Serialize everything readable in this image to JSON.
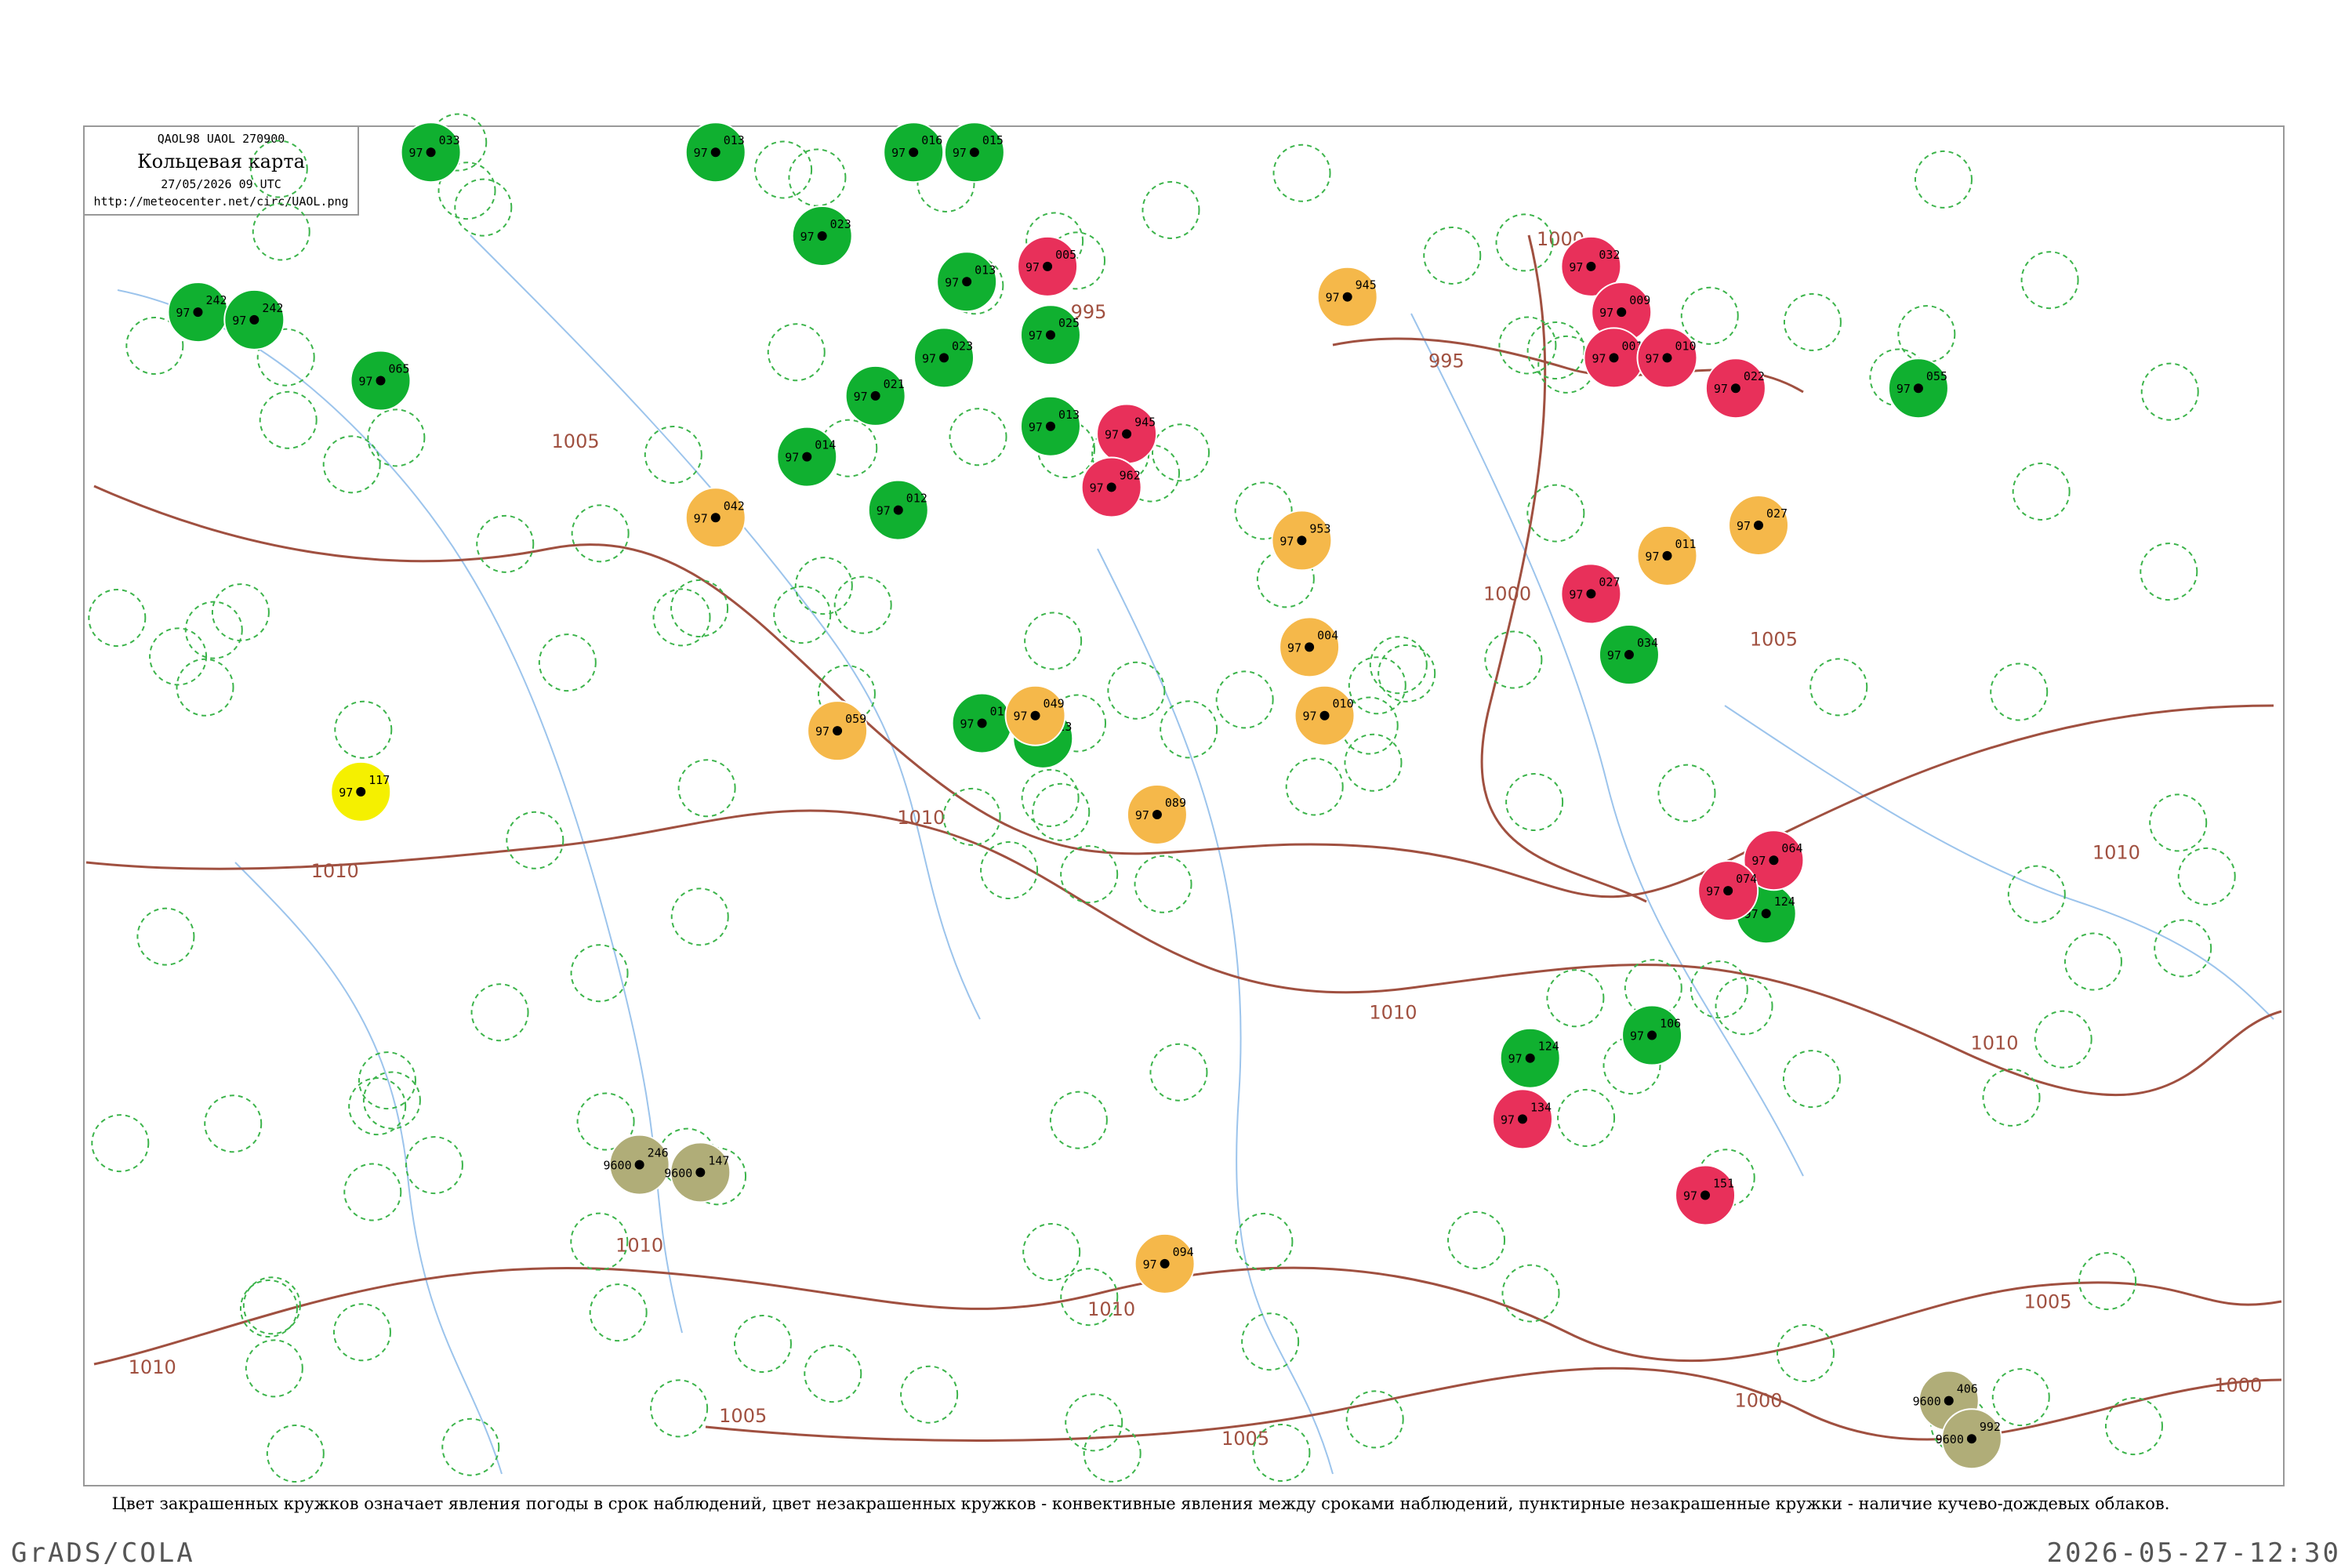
{
  "header": {
    "code": "QAOL98  UAOL  270900",
    "title": "Кольцевая карта",
    "time": "27/05/2026 09 UTC",
    "url": "http://meteocenter.net/circ/UAOL.png"
  },
  "isobar_labels": [
    "1000",
    "995",
    "995",
    "1005",
    "1005",
    "1005",
    "1010",
    "1010",
    "1010",
    "1010",
    "1010",
    "1000",
    "1000",
    "1000",
    "1005",
    "1005",
    "1010",
    "1010",
    "1010"
  ],
  "stations": [
    {
      "pressure": "242",
      "temp": "97",
      "fill": "#10b030"
    },
    {
      "pressure": "242",
      "temp": "97",
      "fill": "#10b030"
    },
    {
      "pressure": "065",
      "temp": "97",
      "fill": "#10b030"
    },
    {
      "pressure": "033",
      "temp": "97",
      "fill": "#10b030"
    },
    {
      "pressure": "013",
      "temp": "97",
      "fill": "#10b030"
    },
    {
      "pressure": "023",
      "temp": "97",
      "fill": "#10b030"
    },
    {
      "pressure": "016",
      "temp": "97",
      "fill": "#10b030"
    },
    {
      "pressure": "015",
      "temp": "97",
      "fill": "#10b030"
    },
    {
      "pressure": "013",
      "temp": "97",
      "fill": "#10b030"
    },
    {
      "pressure": "023",
      "temp": "97",
      "fill": "#10b030"
    },
    {
      "pressure": "025",
      "temp": "97",
      "fill": "#10b030"
    },
    {
      "pressure": "013",
      "temp": "97",
      "fill": "#10b030"
    },
    {
      "pressure": "014",
      "temp": "97",
      "fill": "#10b030"
    },
    {
      "pressure": "021",
      "temp": "97",
      "fill": "#10b030"
    },
    {
      "pressure": "012",
      "temp": "97",
      "fill": "#10b030"
    },
    {
      "pressure": "019",
      "temp": "97",
      "fill": "#10b030"
    },
    {
      "pressure": "023",
      "temp": "97",
      "fill": "#10b030"
    },
    {
      "pressure": "055",
      "temp": "97",
      "fill": "#10b030"
    },
    {
      "pressure": "034",
      "temp": "97",
      "fill": "#10b030"
    },
    {
      "pressure": "124",
      "temp": "97",
      "fill": "#10b030"
    },
    {
      "pressure": "106",
      "temp": "97",
      "fill": "#10b030"
    },
    {
      "pressure": "124",
      "temp": "97",
      "fill": "#10b030"
    },
    {
      "pressure": "005",
      "temp": "97",
      "fill": "#e8305a"
    },
    {
      "pressure": "945",
      "temp": "97",
      "fill": "#e8305a"
    },
    {
      "pressure": "962",
      "temp": "97",
      "fill": "#e8305a"
    },
    {
      "pressure": "032",
      "temp": "97",
      "fill": "#e8305a"
    },
    {
      "pressure": "009",
      "temp": "97",
      "fill": "#e8305a"
    },
    {
      "pressure": "001",
      "temp": "97",
      "fill": "#e8305a"
    },
    {
      "pressure": "010",
      "temp": "97",
      "fill": "#e8305a"
    },
    {
      "pressure": "022",
      "temp": "97",
      "fill": "#e8305a"
    },
    {
      "pressure": "027",
      "temp": "97",
      "fill": "#e8305a"
    },
    {
      "pressure": "064",
      "temp": "97",
      "fill": "#e8305a"
    },
    {
      "pressure": "074",
      "temp": "97",
      "fill": "#e8305a"
    },
    {
      "pressure": "134",
      "temp": "97",
      "fill": "#e8305a"
    },
    {
      "pressure": "151",
      "temp": "97",
      "fill": "#e8305a"
    },
    {
      "pressure": "042",
      "temp": "97",
      "fill": "#f5b84a"
    },
    {
      "pressure": "945",
      "temp": "97",
      "fill": "#f5b84a"
    },
    {
      "pressure": "953",
      "temp": "97",
      "fill": "#f5b84a"
    },
    {
      "pressure": "004",
      "temp": "97",
      "fill": "#f5b84a"
    },
    {
      "pressure": "059",
      "temp": "97",
      "fill": "#f5b84a"
    },
    {
      "pressure": "049",
      "temp": "97",
      "fill": "#f5b84a"
    },
    {
      "pressure": "089",
      "temp": "97",
      "fill": "#f5b84a"
    },
    {
      "pressure": "011",
      "temp": "97",
      "fill": "#f5b84a"
    },
    {
      "pressure": "027",
      "temp": "97",
      "fill": "#f5b84a"
    },
    {
      "pressure": "010",
      "temp": "97",
      "fill": "#f5b84a"
    },
    {
      "pressure": "094",
      "temp": "97",
      "fill": "#f5b84a"
    },
    {
      "pressure": "246",
      "temp": "9600",
      "fill": "#b0ad78"
    },
    {
      "pressure": "147",
      "temp": "9600",
      "fill": "#b0ad78"
    },
    {
      "pressure": "406",
      "temp": "9600",
      "fill": "#b0ad78"
    },
    {
      "pressure": "992",
      "temp": "9600",
      "fill": "#b0ad78"
    },
    {
      "pressure": "117",
      "temp": "97",
      "fill": "#f5f000"
    }
  ],
  "caption": "Цвет закрашенных кружков означает явления погоды в срок наблюдений, цвет незакрашенных кружков - конвективные явления между сроками наблюдений, пунктирные незакрашенные кружки - наличие кучево-дождевых облаков.",
  "footer": {
    "left": "GrADS/COLA",
    "right": "2026-05-27-12:30"
  }
}
